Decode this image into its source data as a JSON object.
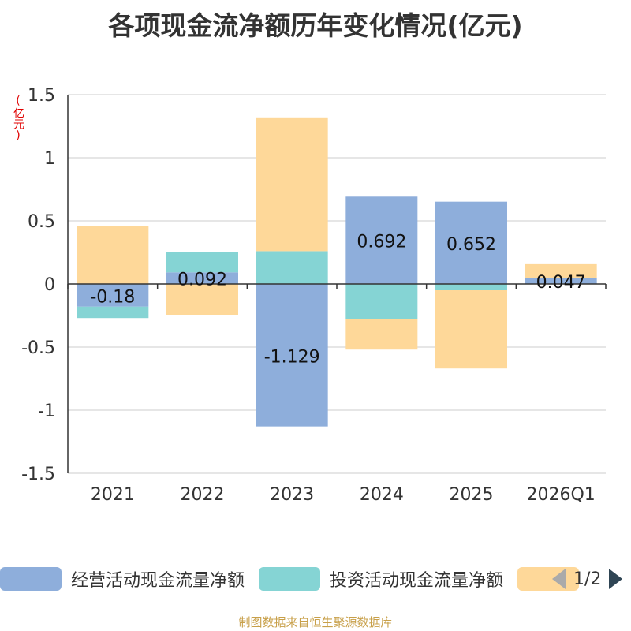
{
  "chart_data": {
    "type": "bar",
    "stacked": true,
    "title": "各项现金流净额历年变化情况(亿元)",
    "unit_label": "(亿元)",
    "categories": [
      "2021",
      "2022",
      "2023",
      "2024",
      "2025",
      "2026Q1"
    ],
    "ylim": [
      -1.5,
      1.5
    ],
    "yticks": [
      1.5,
      1,
      0.5,
      0,
      -0.5,
      -1,
      -1.5
    ],
    "grid": true,
    "legend_position": "bottom",
    "series": [
      {
        "name": "经营活动现金流量净额",
        "color": "#8eaedb",
        "values": [
          -0.18,
          0.092,
          -1.129,
          0.692,
          0.652,
          0.047
        ],
        "show_labels": true
      },
      {
        "name": "投资活动现金流量净额",
        "color": "#85d4d4",
        "values": [
          -0.09,
          0.16,
          0.26,
          -0.28,
          -0.05,
          0.0
        ]
      },
      {
        "name": "",
        "color": "#fed899",
        "values": [
          0.46,
          -0.25,
          1.06,
          -0.24,
          -0.62,
          0.11
        ]
      }
    ]
  },
  "legend": {
    "pager": "1/2"
  },
  "footer": "制图数据来自恒生聚源数据库"
}
